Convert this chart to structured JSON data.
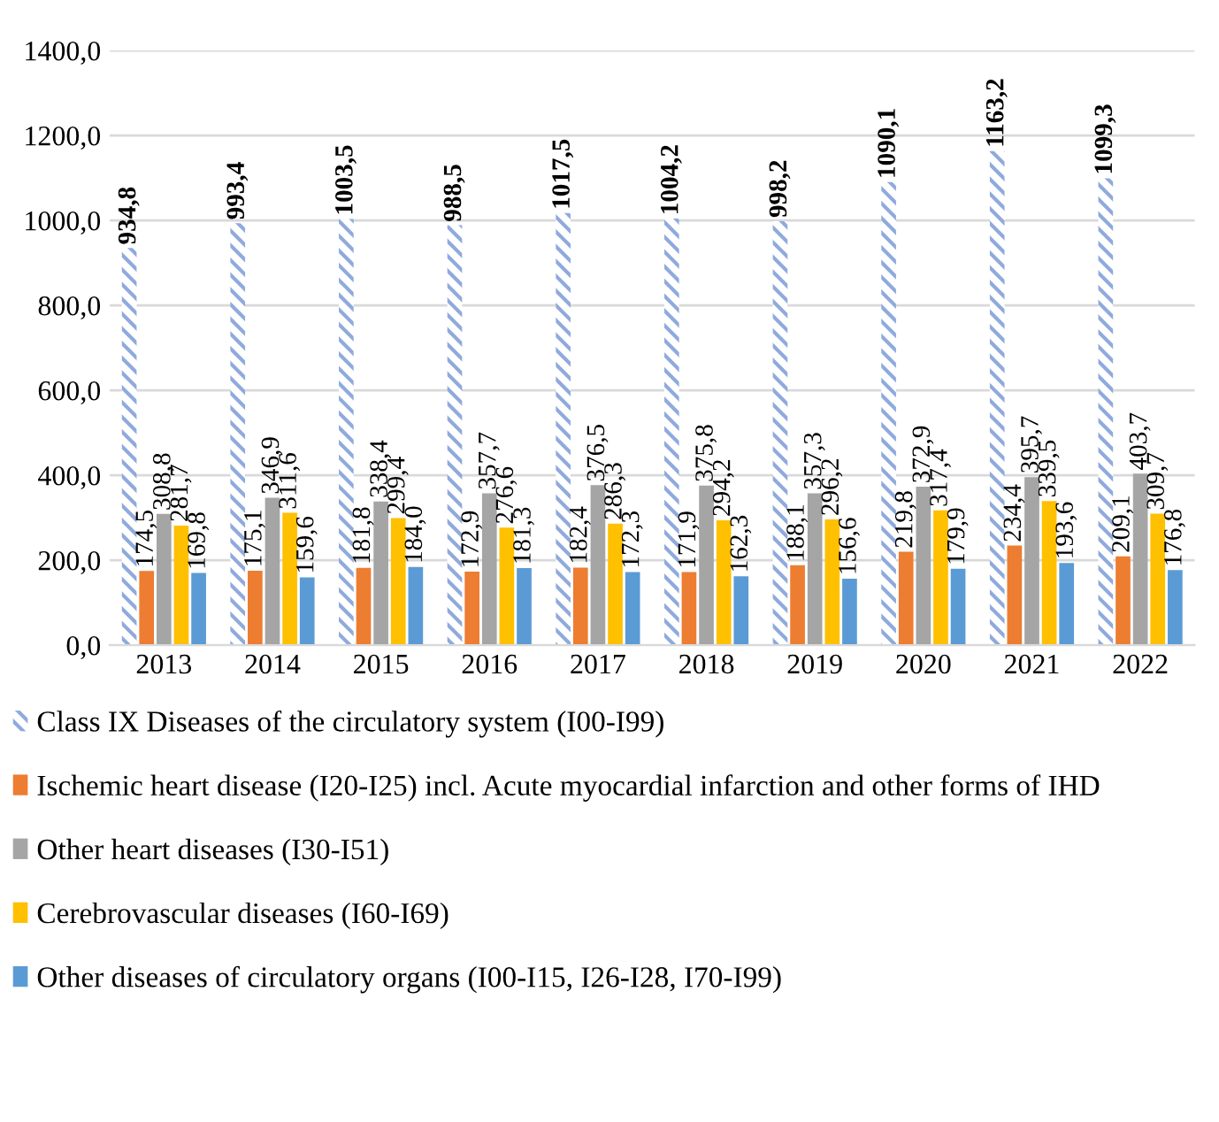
{
  "chart_data": {
    "type": "bar",
    "categories": [
      "2013",
      "2014",
      "2015",
      "2016",
      "2017",
      "2018",
      "2019",
      "2020",
      "2021",
      "2022"
    ],
    "series": [
      {
        "name": "Class IX Diseases of the circulatory system (I00-I99)",
        "color": "#8faadc",
        "values": [
          934.8,
          993.4,
          1003.5,
          988.5,
          1017.5,
          1004.2,
          998.2,
          1090.1,
          1163.2,
          1099.3
        ],
        "value_labels": [
          "934,8",
          "993,4",
          "1003,5",
          "988,5",
          "1017,5",
          "1004,2",
          "998,2",
          "1090,1",
          "1163,2",
          "1099,3"
        ]
      },
      {
        "name": "Ischemic heart disease (I20-I25) incl. Acute myocardial infarction and other forms of IHD",
        "color": "#ed7d31",
        "values": [
          174.5,
          175.1,
          181.8,
          172.9,
          182.4,
          171.9,
          188.1,
          219.8,
          234.4,
          209.1
        ],
        "value_labels": [
          "174,5",
          "175,1",
          "181,8",
          "172,9",
          "182,4",
          "171,9",
          "188,1",
          "219,8",
          "234,4",
          "209,1"
        ]
      },
      {
        "name": "Other heart diseases (I30-I51)",
        "color": "#a5a5a5",
        "values": [
          308.8,
          346.9,
          338.4,
          357.7,
          376.5,
          375.8,
          357.3,
          372.9,
          395.7,
          403.7
        ],
        "value_labels": [
          "308,8",
          "346,9",
          "338,4",
          "357,7",
          "376,5",
          "375,8",
          "357,3",
          "372,9",
          "395,7",
          "403,7"
        ]
      },
      {
        "name": "Cerebrovascular diseases (I60-I69)",
        "color": "#ffc000",
        "values": [
          281.7,
          311.6,
          299.4,
          276.6,
          286.3,
          294.2,
          296.2,
          317.4,
          339.5,
          309.7
        ],
        "value_labels": [
          "281,7",
          "311,6",
          "299,4",
          "276,6",
          "286,3",
          "294,2",
          "296,2",
          "317,4",
          "339,5",
          "309,7"
        ]
      },
      {
        "name": "Other diseases of circulatory organs (I00-I15, I26-I28, I70-I99)",
        "color": "#5b9bd5",
        "values": [
          169.8,
          159.6,
          184.0,
          181.3,
          172.3,
          162.3,
          156.6,
          179.9,
          193.6,
          176.8
        ],
        "value_labels": [
          "169,8",
          "159,6",
          "184,0",
          "181,3",
          "172,3",
          "162,3",
          "156,6",
          "179,9",
          "193,6",
          "176,8"
        ]
      }
    ],
    "ylim": [
      0,
      1400
    ],
    "yticks": [
      {
        "value": 0,
        "label": "0,0"
      },
      {
        "value": 200,
        "label": "200,0"
      },
      {
        "value": 400,
        "label": "400,0"
      },
      {
        "value": 600,
        "label": "600,0"
      },
      {
        "value": 800,
        "label": "800,0"
      },
      {
        "value": 1000,
        "label": "1000,0"
      },
      {
        "value": 1200,
        "label": "1200,0"
      },
      {
        "value": 1400,
        "label": "1400,0"
      }
    ],
    "grid": "y",
    "legend": "bottom"
  }
}
